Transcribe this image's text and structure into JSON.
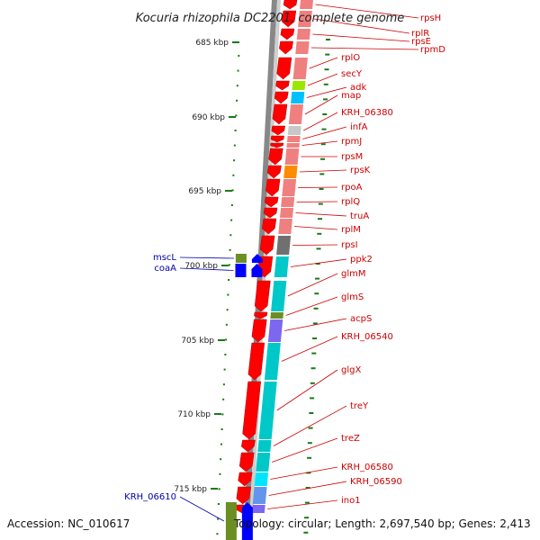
{
  "title": "Kocuria rhizophila DC2201, complete genome",
  "footer": {
    "accession": "Accession: NC_010617",
    "topology": "Topology: circular; Length: 2,697,540 bp; Genes: 2,413"
  },
  "scale": {
    "ticks": [
      "685 kbp",
      "690 kbp",
      "695 kbp",
      "700 kbp",
      "705 kbp",
      "710 kbp",
      "715 kbp"
    ]
  },
  "colors": {
    "forward_label": "#cc0000",
    "reverse_label": "#0000aa",
    "cds": "#ff0000",
    "reverse_cds": "#0000ff",
    "backbone": "#888888",
    "tick": "#1a7a1a"
  },
  "forward_genes": [
    {
      "name": "rpsH",
      "cog": "#f08080"
    },
    {
      "name": "rplR",
      "cog": "#f08080"
    },
    {
      "name": "rpsE",
      "cog": "#f08080"
    },
    {
      "name": "rpmD",
      "cog": "#f08080"
    },
    {
      "name": "rplO",
      "cog": "#f08080"
    },
    {
      "name": "secY",
      "cog": "#9ae600"
    },
    {
      "name": "adk",
      "cog": "#00c0ff"
    },
    {
      "name": "map",
      "cog": "#f08080"
    },
    {
      "name": "KRH_06380",
      "cog": "#c8c8c8"
    },
    {
      "name": "infA",
      "cog": "#f08080"
    },
    {
      "name": "rpmJ",
      "cog": "#f08080"
    },
    {
      "name": "rpsM",
      "cog": "#f08080"
    },
    {
      "name": "rpsK",
      "cog": "#ff8c00"
    },
    {
      "name": "rpoA",
      "cog": "#f08080"
    },
    {
      "name": "rplQ",
      "cog": "#f08080"
    },
    {
      "name": "truA",
      "cog": "#f08080"
    },
    {
      "name": "rplM",
      "cog": "#f08080"
    },
    {
      "name": "rpsI",
      "cog": "#707070"
    },
    {
      "name": "ppk2",
      "cog": "#00c8c8"
    },
    {
      "name": "glmM",
      "cog": "#00c8c8"
    },
    {
      "name": "glmS",
      "cog": "#6b8e23"
    },
    {
      "name": "acpS",
      "cog": "#7b68ee"
    },
    {
      "name": "KRH_06540",
      "cog": "#00c8c8"
    },
    {
      "name": "glgX",
      "cog": "#00c8c8"
    },
    {
      "name": "treY",
      "cog": "#00c8c8"
    },
    {
      "name": "treZ",
      "cog": "#00c8c8"
    },
    {
      "name": "KRH_06580",
      "cog": "#00e5ff"
    },
    {
      "name": "KRH_06590",
      "cog": "#6495ed"
    },
    {
      "name": "ino1",
      "cog": "#7b68ee"
    }
  ],
  "reverse_genes": [
    {
      "name": "mscL",
      "cog": "#6b8e23"
    },
    {
      "name": "coaA",
      "cog": "#0000ff"
    },
    {
      "name": "KRH_06610",
      "cog": "#6b8e23"
    }
  ]
}
